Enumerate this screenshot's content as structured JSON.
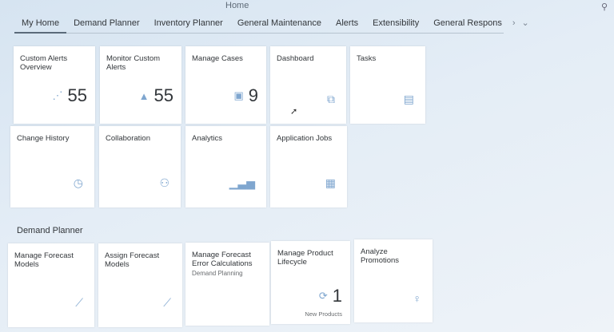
{
  "header": {
    "title": "Home",
    "search_icon": "search-icon"
  },
  "tabs": [
    "My Home",
    "Demand Planner",
    "Inventory Planner",
    "General Maintenance",
    "Alerts",
    "Extensibility",
    "General Respons"
  ],
  "tabs_overflow": {
    "next": "›",
    "menu": "⌄"
  },
  "groups": [
    {
      "tiles": [
        {
          "title": "Custom Alerts Overview",
          "icon": "trend-icon",
          "glyph": "⋰",
          "number": "55"
        },
        {
          "title": "Monitor Custom Alerts",
          "icon": "alert-icon",
          "glyph": "▲",
          "number": "55"
        },
        {
          "title": "Manage Cases",
          "icon": "case-icon",
          "glyph": "▣",
          "number": "9"
        },
        {
          "title": "Dashboard",
          "icon": "dashboard-icon",
          "glyph": "⧉"
        },
        {
          "title": "Tasks",
          "icon": "tasks-icon",
          "glyph": "▤"
        },
        {
          "title": "Change History",
          "icon": "clock-icon",
          "glyph": "◷"
        },
        {
          "title": "Collaboration",
          "icon": "collaboration-icon",
          "glyph": "⚇"
        },
        {
          "title": "Analytics",
          "icon": "bar-chart-icon",
          "glyph": "▁▃▅"
        },
        {
          "title": "Application Jobs",
          "icon": "jobs-icon",
          "glyph": "▦"
        }
      ]
    },
    {
      "title": "Demand Planner",
      "tiles": [
        {
          "title": "Manage Forecast Models",
          "icon": "line-chart-icon",
          "glyph": "⟋"
        },
        {
          "title": "Assign Forecast Models",
          "icon": "chart-assign-icon",
          "glyph": "⟋"
        },
        {
          "title": "Manage Forecast Error Calculations",
          "subtitle": "Demand Planning",
          "icon": "",
          "glyph": ""
        },
        {
          "title": "Manage Product Lifecycle",
          "icon": "lifecycle-icon",
          "glyph": "⟳",
          "number": "1",
          "footer": "New Products"
        },
        {
          "title": "Analyze Promotions",
          "icon": "promotion-icon",
          "glyph": "♀"
        }
      ]
    }
  ]
}
